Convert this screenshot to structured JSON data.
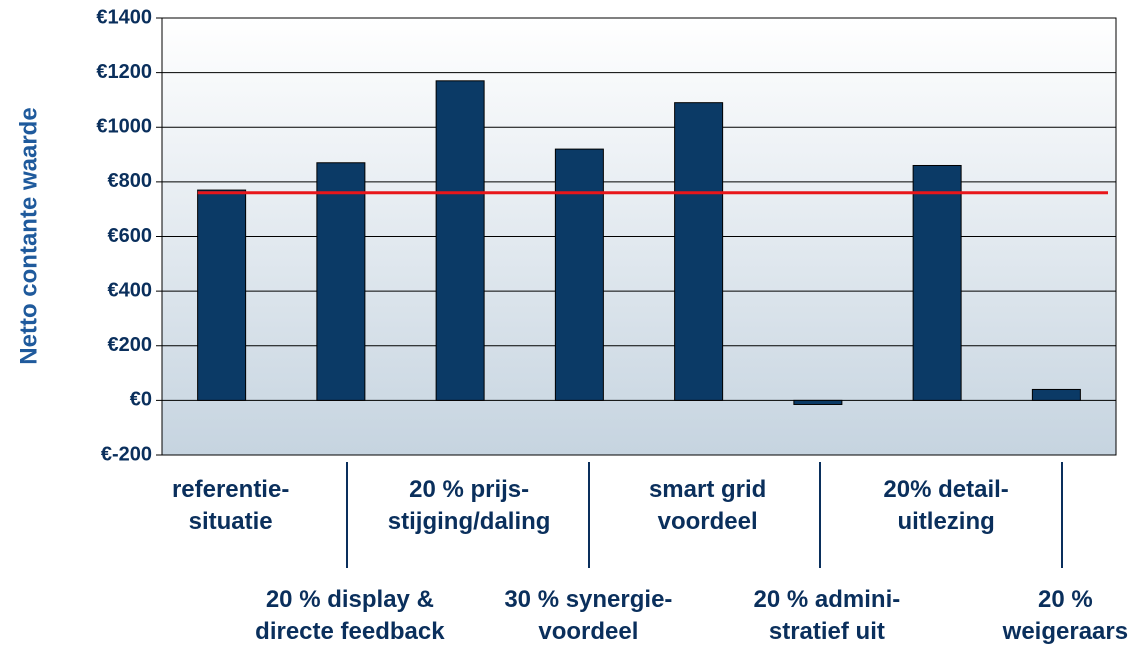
{
  "chart_data": {
    "type": "bar",
    "y_axis_label": "Netto contante waarde",
    "categories": [
      "referentie-\nsituatie",
      "20 % display &\ndirecte feedback",
      "20 % prijs-\nstijging/daling",
      "30 % synergie-\nvoordeel",
      "smart grid\nvoordeel",
      "20 % admini-\nstratief uit",
      "20% detail-\nuitlezing",
      "20 %\nweigeraars"
    ],
    "values": [
      770,
      870,
      1170,
      920,
      1090,
      -15,
      860,
      40
    ],
    "color": "#0b3a66",
    "reference_line": {
      "value": 760,
      "color": "#e8161b"
    },
    "ylim": [
      -200,
      1400
    ],
    "yticks": [
      {
        "value": -200,
        "label": "€-200"
      },
      {
        "value": 0,
        "label": "€0"
      },
      {
        "value": 200,
        "label": "€200"
      },
      {
        "value": 400,
        "label": "€400"
      },
      {
        "value": 600,
        "label": "€600"
      },
      {
        "value": 800,
        "label": "€800"
      },
      {
        "value": 1000,
        "label": "€1000"
      },
      {
        "value": 1200,
        "label": "€1200"
      },
      {
        "value": 1400,
        "label": "€1400"
      }
    ],
    "grid": true
  }
}
